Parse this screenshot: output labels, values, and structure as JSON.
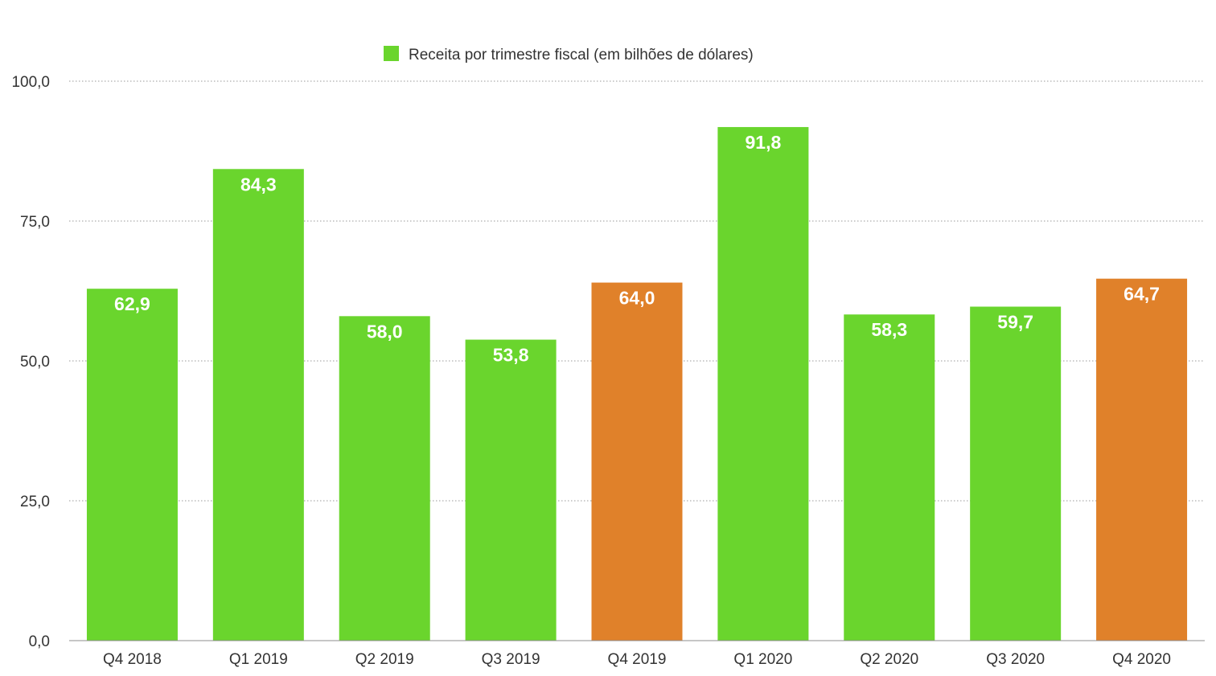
{
  "chart_data": {
    "type": "bar",
    "categories": [
      "Q4 2018",
      "Q1 2019",
      "Q2 2019",
      "Q3 2019",
      "Q4 2019",
      "Q1 2020",
      "Q2 2020",
      "Q3 2020",
      "Q4 2020"
    ],
    "series": [
      {
        "name": "Receita por trimestre fiscal (em bilhões de dólares)",
        "values": [
          62.9,
          84.3,
          58.0,
          53.8,
          64.0,
          91.8,
          58.3,
          59.7,
          64.7
        ],
        "value_labels": [
          "62,9",
          "84,3",
          "58,0",
          "53,8",
          "64,0",
          "91,8",
          "58,3",
          "59,7",
          "64,7"
        ]
      }
    ],
    "highlighted_categories": [
      "Q4 2019",
      "Q4 2020"
    ],
    "colors": {
      "default": "#6AD52D",
      "highlight": "#E0812A"
    },
    "ylim": [
      0,
      100
    ],
    "yticks": [
      0,
      25,
      50,
      75,
      100
    ],
    "ytick_labels": [
      "0,0",
      "25,0",
      "50,0",
      "75,0",
      "100,0"
    ],
    "grid": true,
    "legend": "top-center"
  }
}
